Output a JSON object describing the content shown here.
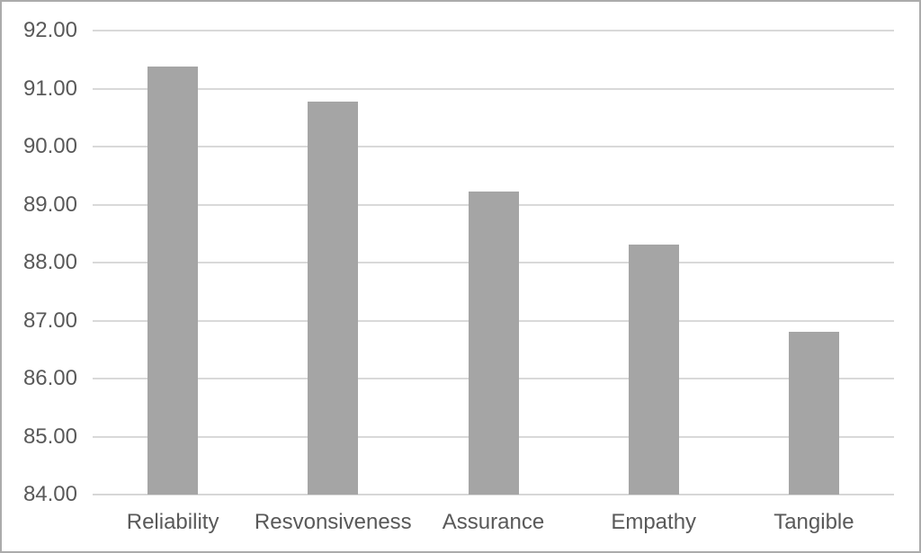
{
  "chart_data": {
    "type": "bar",
    "title": "",
    "xlabel": "",
    "ylabel": "",
    "categories": [
      "Reliability",
      "Resvonsiveness",
      "Assurance",
      "Empathy",
      "Tangible"
    ],
    "values": [
      91.38,
      90.77,
      89.22,
      88.31,
      86.81
    ],
    "ylim": [
      84,
      92
    ],
    "ytick_step": 1,
    "ytick_decimals": 2,
    "grid": true,
    "legend": false,
    "colors": {
      "bar": "#a5a5a5",
      "gridline": "#d9d9d9",
      "axis_line": "#d6d6d6",
      "tick_text": "#595959",
      "background": "#ffffff",
      "border": "#ababab"
    }
  }
}
